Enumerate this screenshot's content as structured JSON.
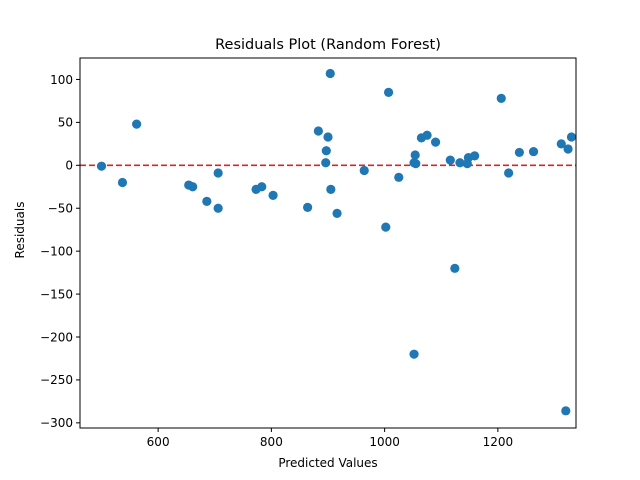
{
  "chart_data": {
    "type": "scatter",
    "title": "Residuals Plot (Random Forest)",
    "xlabel": "Predicted Values",
    "ylabel": "Residuals",
    "xlim": [
      462,
      1338
    ],
    "ylim": [
      -306,
      125
    ],
    "xticks": [
      600,
      800,
      1000,
      1200
    ],
    "yticks": [
      100,
      50,
      0,
      -50,
      -100,
      -150,
      -200,
      -250,
      -300
    ],
    "xtick_labels": [
      "600",
      "800",
      "1000",
      "1200"
    ],
    "ytick_labels": [
      "100",
      "50",
      "0",
      "−50",
      "−100",
      "−150",
      "−200",
      "−250",
      "−300"
    ],
    "marker_color": "#1f77b4",
    "reference_line": {
      "y": 0,
      "color": "#d62728",
      "style": "dashed"
    },
    "grid": false,
    "points": [
      {
        "x": 500,
        "y": -1
      },
      {
        "x": 537,
        "y": -20
      },
      {
        "x": 562,
        "y": 48
      },
      {
        "x": 654,
        "y": -23
      },
      {
        "x": 661,
        "y": -25
      },
      {
        "x": 686,
        "y": -42
      },
      {
        "x": 706,
        "y": -9
      },
      {
        "x": 706,
        "y": -50
      },
      {
        "x": 773,
        "y": -28
      },
      {
        "x": 783,
        "y": -25
      },
      {
        "x": 803,
        "y": -35
      },
      {
        "x": 864,
        "y": -49
      },
      {
        "x": 883,
        "y": 40
      },
      {
        "x": 896,
        "y": 3
      },
      {
        "x": 897,
        "y": 17
      },
      {
        "x": 900,
        "y": 33
      },
      {
        "x": 904,
        "y": 107
      },
      {
        "x": 905,
        "y": -28
      },
      {
        "x": 916,
        "y": -56
      },
      {
        "x": 964,
        "y": -6
      },
      {
        "x": 1002,
        "y": -72
      },
      {
        "x": 1007,
        "y": 85
      },
      {
        "x": 1025,
        "y": -14
      },
      {
        "x": 1052,
        "y": 3
      },
      {
        "x": 1054,
        "y": 12
      },
      {
        "x": 1055,
        "y": 2
      },
      {
        "x": 1052,
        "y": -220
      },
      {
        "x": 1065,
        "y": 32
      },
      {
        "x": 1075,
        "y": 35
      },
      {
        "x": 1090,
        "y": 27
      },
      {
        "x": 1116,
        "y": 6
      },
      {
        "x": 1124,
        "y": -120
      },
      {
        "x": 1133,
        "y": 3
      },
      {
        "x": 1146,
        "y": 2
      },
      {
        "x": 1148,
        "y": 9
      },
      {
        "x": 1159,
        "y": 11
      },
      {
        "x": 1206,
        "y": 78
      },
      {
        "x": 1219,
        "y": -9
      },
      {
        "x": 1238,
        "y": 15
      },
      {
        "x": 1263,
        "y": 16
      },
      {
        "x": 1312,
        "y": 25
      },
      {
        "x": 1320,
        "y": -286
      },
      {
        "x": 1324,
        "y": 19
      },
      {
        "x": 1330,
        "y": 33
      }
    ]
  }
}
